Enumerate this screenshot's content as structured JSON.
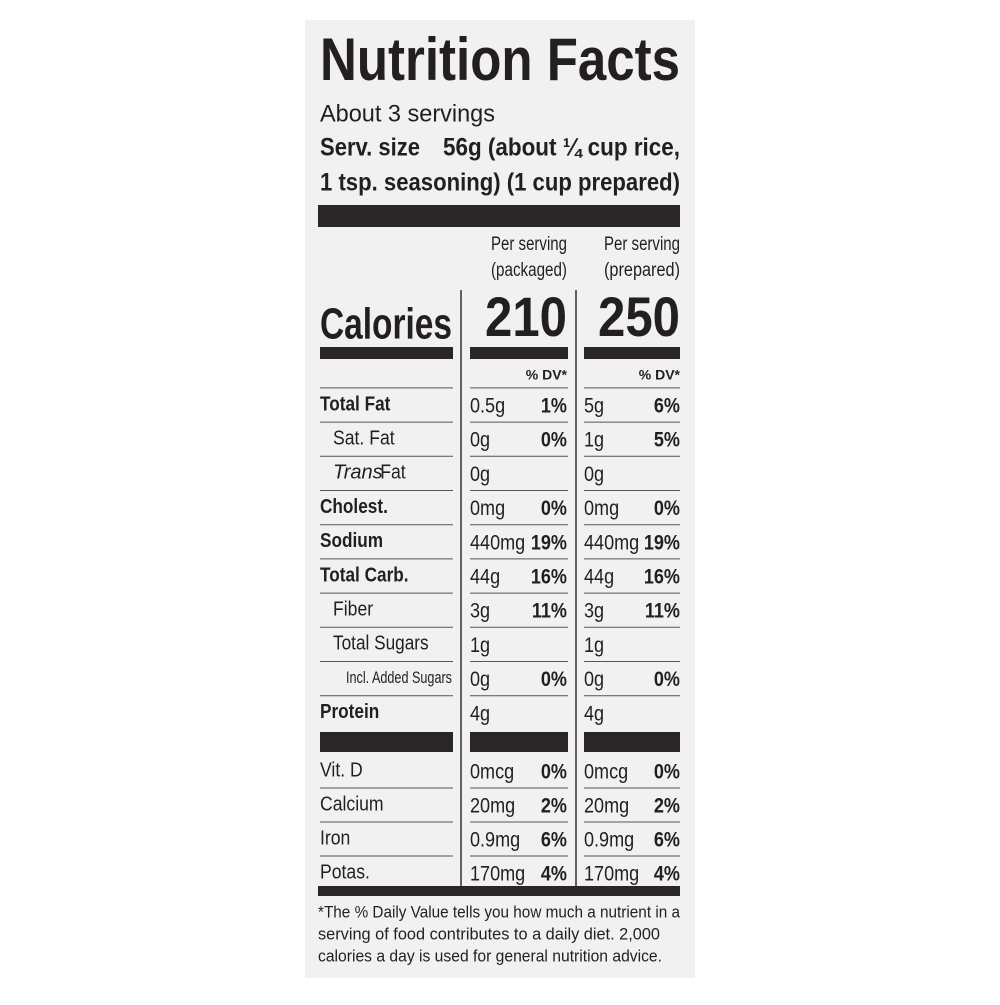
{
  "label": {
    "title": "Nutrition Facts",
    "servings": "About 3 servings",
    "serving_size_label": "Serv. size",
    "serving_size_lines": [
      "56g (about ¼ cup rice,",
      "1 tsp. seasoning) (1 cup prepared)"
    ],
    "columns": [
      {
        "header": [
          "Per serving",
          "(packaged)"
        ],
        "calories": "210",
        "dv_header": "% DV*"
      },
      {
        "header": [
          "Per serving",
          "(prepared)"
        ],
        "calories": "250",
        "dv_header": "% DV*"
      }
    ],
    "calories_label": "Calories",
    "nutrients": [
      {
        "name": "Total Fat",
        "bold": true,
        "indent": 0,
        "values": [
          {
            "amount": "0.5g",
            "dv": "1%"
          },
          {
            "amount": "5g",
            "dv": "6%"
          }
        ]
      },
      {
        "name": "Sat. Fat",
        "indent": 1,
        "values": [
          {
            "amount": "0g",
            "dv": "0%"
          },
          {
            "amount": "1g",
            "dv": "5%"
          }
        ]
      },
      {
        "name_italic": "Trans",
        "name": "Fat",
        "indent": 1,
        "values": [
          {
            "amount": "0g"
          },
          {
            "amount": "0g"
          }
        ]
      },
      {
        "name": "Cholest.",
        "bold": true,
        "indent": 0,
        "values": [
          {
            "amount": "0mg",
            "dv": "0%"
          },
          {
            "amount": "0mg",
            "dv": "0%"
          }
        ]
      },
      {
        "name": "Sodium",
        "bold": true,
        "indent": 0,
        "values": [
          {
            "amount": "440mg",
            "dv": "19%"
          },
          {
            "amount": "440mg",
            "dv": "19%"
          }
        ]
      },
      {
        "name": "Total Carb.",
        "bold": true,
        "indent": 0,
        "values": [
          {
            "amount": "44g",
            "dv": "16%"
          },
          {
            "amount": "44g",
            "dv": "16%"
          }
        ]
      },
      {
        "name": "Fiber",
        "indent": 1,
        "values": [
          {
            "amount": "3g",
            "dv": "11%"
          },
          {
            "amount": "3g",
            "dv": "11%"
          }
        ]
      },
      {
        "name": "Total Sugars",
        "indent": 1,
        "values": [
          {
            "amount": "1g"
          },
          {
            "amount": "1g"
          }
        ]
      },
      {
        "name": "Incl. Added Sugars",
        "indent": 2,
        "values": [
          {
            "amount": "0g",
            "dv": "0%"
          },
          {
            "amount": "0g",
            "dv": "0%"
          }
        ]
      },
      {
        "name": "Protein",
        "bold": true,
        "indent": 0,
        "values": [
          {
            "amount": "4g"
          },
          {
            "amount": "4g"
          }
        ]
      }
    ],
    "vitamins": [
      {
        "name": "Vit. D",
        "values": [
          {
            "amount": "0mcg",
            "dv": "0%"
          },
          {
            "amount": "0mcg",
            "dv": "0%"
          }
        ]
      },
      {
        "name": "Calcium",
        "values": [
          {
            "amount": "20mg",
            "dv": "2%"
          },
          {
            "amount": "20mg",
            "dv": "2%"
          }
        ]
      },
      {
        "name": "Iron",
        "values": [
          {
            "amount": "0.9mg",
            "dv": "6%"
          },
          {
            "amount": "0.9mg",
            "dv": "6%"
          }
        ]
      },
      {
        "name": "Potas.",
        "values": [
          {
            "amount": "170mg",
            "dv": "4%"
          },
          {
            "amount": "170mg",
            "dv": "4%"
          }
        ]
      }
    ],
    "footnote": [
      "*The % Daily Value tells you how much a nutrient in a",
      "serving of food contributes to a daily diet. 2,000",
      "calories a day is used for general nutrition advice."
    ]
  }
}
